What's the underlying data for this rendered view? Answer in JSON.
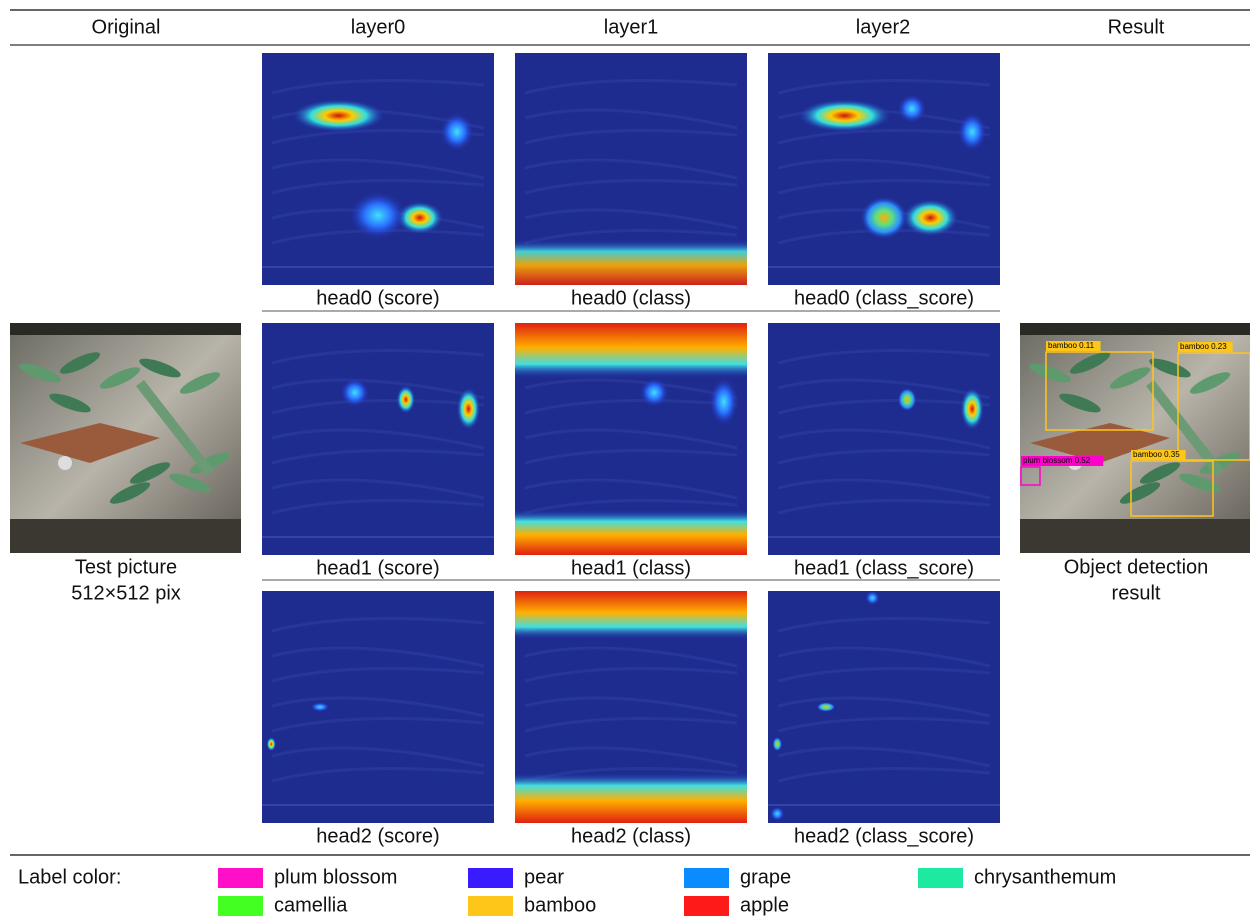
{
  "header": {
    "columns": [
      "Original",
      "layer0",
      "layer1",
      "layer2",
      "Result"
    ]
  },
  "original": {
    "caption": [
      "Test picture",
      "512×512 pix"
    ]
  },
  "heads": [
    {
      "captions": [
        "head0 (score)",
        "head0 (class)",
        "head0 (class_score)"
      ]
    },
    {
      "captions": [
        "head1 (score)",
        "head1 (class)",
        "head1 (class_score)"
      ]
    },
    {
      "captions": [
        "head2 (score)",
        "head2 (class)",
        "head2 (class_score)"
      ]
    }
  ],
  "result": {
    "caption": [
      "Object detection",
      "result"
    ],
    "detections": [
      {
        "label": "bamboo 0.11",
        "color": "#ffc61a"
      },
      {
        "label": "bamboo 0.23",
        "color": "#ffc61a"
      },
      {
        "label": "plum blossom 0.52",
        "color": "#ff00cc"
      },
      {
        "label": "bamboo 0.35",
        "color": "#ffc61a"
      }
    ]
  },
  "legend": {
    "title": "Label color:",
    "items": [
      {
        "name": "plum blossom",
        "color": "#ff10c8"
      },
      {
        "name": "pear",
        "color": "#3a1aff"
      },
      {
        "name": "grape",
        "color": "#0a8cff"
      },
      {
        "name": "chrysanthemum",
        "color": "#1de9a0"
      },
      {
        "name": "camellia",
        "color": "#44ff22"
      },
      {
        "name": "bamboo",
        "color": "#ffc61a"
      },
      {
        "name": "apple",
        "color": "#ff1a1a"
      }
    ]
  }
}
